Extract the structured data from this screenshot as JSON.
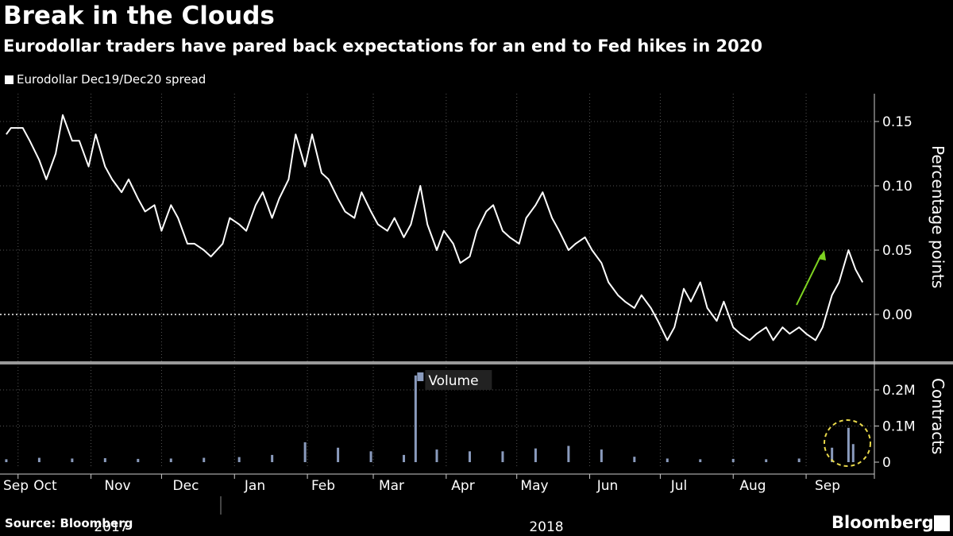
{
  "title": "Break in the Clouds",
  "subtitle": "Eurodollar traders have pared back expectations for an end to Fed hikes in 2020",
  "legend_label": "Eurodollar Dec19/Dec20 spread",
  "source": "Source:  Bloomberg",
  "brand": "Bloomberg",
  "colors": {
    "background": "#000000",
    "line": "#ffffff",
    "volume": "#8a9bbd",
    "arrow": "#7ed321",
    "highlight": "#e8d84a"
  },
  "chart_data": [
    {
      "type": "line",
      "series": [
        {
          "name": "Eurodollar Dec19/Dec20 spread",
          "x": [
            "2017-09-26",
            "2017-09-28",
            "2017-10-03",
            "2017-10-06",
            "2017-10-10",
            "2017-10-13",
            "2017-10-17",
            "2017-10-20",
            "2017-10-24",
            "2017-10-27",
            "2017-10-31",
            "2017-11-03",
            "2017-11-07",
            "2017-11-10",
            "2017-11-14",
            "2017-11-17",
            "2017-11-21",
            "2017-11-24",
            "2017-11-28",
            "2017-12-01",
            "2017-12-05",
            "2017-12-08",
            "2017-12-12",
            "2017-12-15",
            "2017-12-19",
            "2017-12-22",
            "2017-12-27",
            "2017-12-30",
            "2018-01-03",
            "2018-01-06",
            "2018-01-10",
            "2018-01-13",
            "2018-01-17",
            "2018-01-20",
            "2018-01-24",
            "2018-01-27",
            "2018-01-31",
            "2018-02-03",
            "2018-02-07",
            "2018-02-10",
            "2018-02-14",
            "2018-02-17",
            "2018-02-21",
            "2018-02-24",
            "2018-02-28",
            "2018-03-03",
            "2018-03-07",
            "2018-03-10",
            "2018-03-14",
            "2018-03-17",
            "2018-03-21",
            "2018-03-24",
            "2018-03-28",
            "2018-03-31",
            "2018-04-04",
            "2018-04-07",
            "2018-04-11",
            "2018-04-14",
            "2018-04-18",
            "2018-04-21",
            "2018-04-25",
            "2018-04-28",
            "2018-05-02",
            "2018-05-05",
            "2018-05-09",
            "2018-05-12",
            "2018-05-16",
            "2018-05-19",
            "2018-05-23",
            "2018-05-26",
            "2018-05-30",
            "2018-06-02",
            "2018-06-06",
            "2018-06-09",
            "2018-06-13",
            "2018-06-16",
            "2018-06-20",
            "2018-06-23",
            "2018-06-27",
            "2018-06-30",
            "2018-07-04",
            "2018-07-07",
            "2018-07-11",
            "2018-07-14",
            "2018-07-18",
            "2018-07-21",
            "2018-07-25",
            "2018-07-28",
            "2018-08-01",
            "2018-08-04",
            "2018-08-08",
            "2018-08-11",
            "2018-08-15",
            "2018-08-18",
            "2018-08-22",
            "2018-08-25",
            "2018-08-29",
            "2018-09-01",
            "2018-09-05",
            "2018-09-08",
            "2018-09-12",
            "2018-09-15",
            "2018-09-19",
            "2018-09-22",
            "2018-09-25"
          ],
          "y": [
            0.14,
            0.145,
            0.145,
            0.135,
            0.12,
            0.105,
            0.125,
            0.155,
            0.135,
            0.135,
            0.115,
            0.14,
            0.115,
            0.105,
            0.095,
            0.105,
            0.09,
            0.08,
            0.085,
            0.065,
            0.085,
            0.075,
            0.055,
            0.055,
            0.05,
            0.045,
            0.055,
            0.075,
            0.07,
            0.065,
            0.085,
            0.095,
            0.075,
            0.09,
            0.105,
            0.14,
            0.115,
            0.14,
            0.11,
            0.105,
            0.09,
            0.08,
            0.075,
            0.095,
            0.08,
            0.07,
            0.065,
            0.075,
            0.06,
            0.07,
            0.1,
            0.07,
            0.05,
            0.065,
            0.055,
            0.04,
            0.045,
            0.065,
            0.08,
            0.085,
            0.065,
            0.06,
            0.055,
            0.075,
            0.085,
            0.095,
            0.075,
            0.065,
            0.05,
            0.055,
            0.06,
            0.05,
            0.04,
            0.025,
            0.015,
            0.01,
            0.005,
            0.015,
            0.005,
            -0.005,
            -0.02,
            -0.01,
            0.02,
            0.01,
            0.025,
            0.005,
            -0.005,
            0.01,
            -0.01,
            -0.015,
            -0.02,
            -0.015,
            -0.01,
            -0.02,
            -0.01,
            -0.015,
            -0.01,
            -0.015,
            -0.02,
            -0.01,
            0.015,
            0.025,
            0.05,
            0.035,
            0.025
          ]
        }
      ],
      "ylabel": "Percentage points",
      "yticks": [
        "0.15",
        "0.10",
        "0.05",
        "0.00"
      ],
      "ylim": [
        -0.035,
        0.17
      ],
      "grid": true,
      "zero_line": "dotted",
      "annotation": "green arrow pointing up toward recent rise"
    },
    {
      "type": "bar",
      "series": [
        {
          "name": "Volume",
          "x": [
            "2017-09-26",
            "2017-10-10",
            "2017-10-24",
            "2017-11-07",
            "2017-11-21",
            "2017-12-05",
            "2017-12-19",
            "2018-01-03",
            "2018-01-17",
            "2018-01-31",
            "2018-02-14",
            "2018-02-28",
            "2018-03-14",
            "2018-03-19",
            "2018-03-28",
            "2018-04-11",
            "2018-04-25",
            "2018-05-09",
            "2018-05-23",
            "2018-06-06",
            "2018-06-20",
            "2018-07-04",
            "2018-07-18",
            "2018-08-01",
            "2018-08-15",
            "2018-08-29",
            "2018-09-12",
            "2018-09-19",
            "2018-09-21"
          ],
          "y": [
            8000,
            12000,
            10000,
            11000,
            9000,
            10000,
            12000,
            14000,
            20000,
            55000,
            40000,
            30000,
            20000,
            240000,
            35000,
            30000,
            30000,
            38000,
            45000,
            35000,
            15000,
            10000,
            8000,
            9000,
            8000,
            10000,
            40000,
            95000,
            50000
          ]
        }
      ],
      "ylabel": "Contracts",
      "yticks": [
        "0.2M",
        "0.1M",
        "0"
      ],
      "ylim": [
        0,
        270000
      ],
      "label": "Volume",
      "annotation": "yellow dashed circle around latest volume spike"
    }
  ],
  "x_axis": {
    "months": [
      "Sep",
      "Oct",
      "Nov",
      "Dec",
      "Jan",
      "Feb",
      "Mar",
      "Apr",
      "May",
      "Jun",
      "Jul",
      "Aug",
      "Sep"
    ],
    "years": [
      "2017",
      "2018"
    ]
  }
}
